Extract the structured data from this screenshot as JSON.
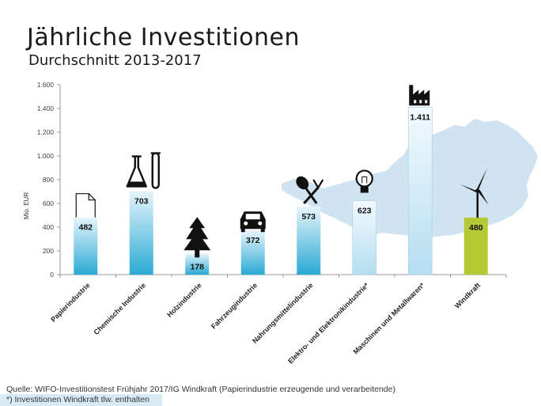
{
  "header": {
    "title": "Jährliche Investitionen",
    "subtitle": "Durchschnitt 2013-2017"
  },
  "footer": {
    "source": "Quelle: WIFO-Investitionstest Frühjahr 2017/IG Windkraft (Papierindustrie erzeugende und verarbeitende)",
    "footnote": "*)  Investitionen Windkraft tlw. enthalten"
  },
  "chart_data": {
    "type": "bar",
    "title": "Jährliche Investitionen",
    "subtitle": "Durchschnitt 2013-2017",
    "ylabel": "Mio. EUR",
    "xlabel": "",
    "ylim": [
      0,
      1600
    ],
    "yticks": [
      0,
      200,
      400,
      600,
      800,
      1000,
      1200,
      1400,
      1600
    ],
    "ytick_labels": [
      "0",
      "200",
      "400",
      "600",
      "800",
      "1.000",
      "1.200",
      "1.400",
      "1.600"
    ],
    "grid": false,
    "categories": [
      "Papierindustrie",
      "Chemische Industrie",
      "Holzindustrie",
      "Fahrzeugindustrie",
      "Nahrungsmittelindustrie",
      "Elektro- und Elektronikindustrie*",
      "Maschinen und Metallwaren*",
      "Windkraft"
    ],
    "values": [
      482,
      703,
      178,
      372,
      573,
      623,
      1411,
      480
    ],
    "value_labels": [
      "482",
      "703",
      "178",
      "372",
      "573",
      "623",
      "1.411",
      "480"
    ],
    "icons": [
      "paper-icon",
      "chemistry-icon",
      "tree-icon",
      "car-icon",
      "cutlery-icon",
      "light-bulb-icon",
      "factory-icon",
      "wind-turbine-icon"
    ],
    "colors": {
      "bar_top": "#e6f4fb",
      "bar_bottom": "#2aaad4",
      "light_bar_bottom": "#b5ddf1",
      "windkraft": "#b5c934",
      "austria_map": "#cfe3f1",
      "axis": "#999999"
    }
  }
}
